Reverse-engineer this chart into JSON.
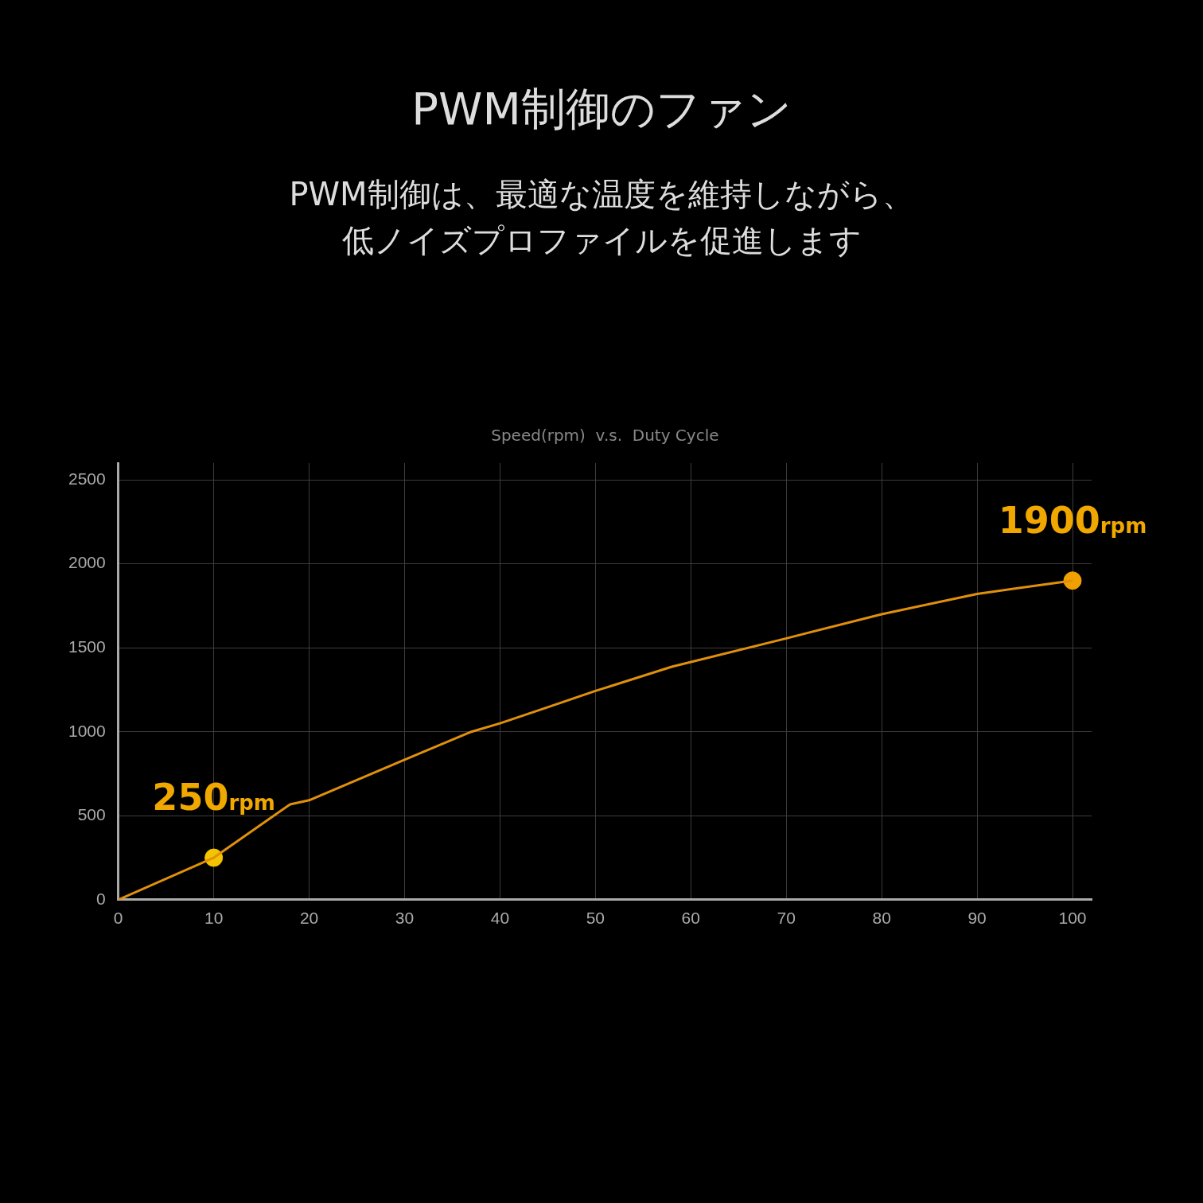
{
  "chart_data": {
    "type": "line",
    "title": "PWM制御のファン",
    "subtitle": "PWM制御は、最適な温度を維持しながら、低ノイズプロファイルを促進します",
    "annotations": [
      "Speed(rpm)  v.s.  Duty Cycle",
      {
        "text": "250rpm",
        "x": 10,
        "y": 250
      },
      {
        "text": "1900rpm",
        "x": 100,
        "y": 1900
      }
    ],
    "series": [
      {
        "color": "#e0900c",
        "marker": "none",
        "x": [
          0,
          10,
          18,
          20,
          30,
          37,
          40,
          45,
          50,
          58,
          70,
          80,
          90,
          100
        ],
        "values": [
          0,
          250,
          568,
          592,
          833,
          1000,
          1050,
          1146,
          1243,
          1387,
          1556,
          1700,
          1821,
          1900
        ]
      },
      {
        "type": "scatter",
        "marker": "circle",
        "x": [
          10,
          100
        ],
        "values": [
          250,
          1900
        ],
        "colors": [
          "#f5c400",
          "#f0a000"
        ]
      }
    ],
    "xlim": [
      0,
      102
    ],
    "xticks": [
      0,
      10,
      20,
      30,
      40,
      50,
      60,
      70,
      80,
      90,
      100
    ],
    "ylim": [
      0,
      2600
    ],
    "yticks": [
      0,
      500,
      1000,
      1500,
      2000,
      2500
    ],
    "grid": true,
    "legend": false,
    "line_style": "solid"
  }
}
